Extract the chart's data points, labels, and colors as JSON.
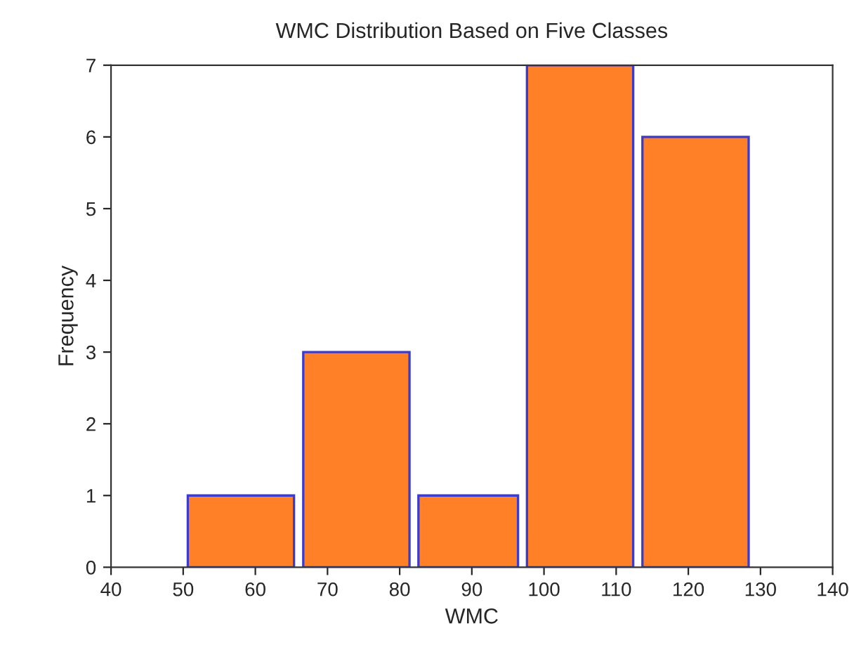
{
  "chart_data": {
    "type": "histogram",
    "title": "WMC Distribution Based on Five Classes",
    "xlabel": "WMC",
    "ylabel": "Frequency",
    "bins": [
      50,
      66,
      82,
      97,
      113,
      129
    ],
    "values": [
      1,
      3,
      1,
      7,
      6
    ],
    "color": "#ff8026",
    "xlim": [
      40,
      140
    ],
    "xticks": [
      40,
      50,
      60,
      70,
      80,
      90,
      100,
      110,
      120,
      130,
      140
    ],
    "ylim": [
      0,
      7
    ],
    "yticks": [
      0,
      1,
      2,
      3,
      4,
      5,
      6,
      7
    ],
    "grid": false
  }
}
